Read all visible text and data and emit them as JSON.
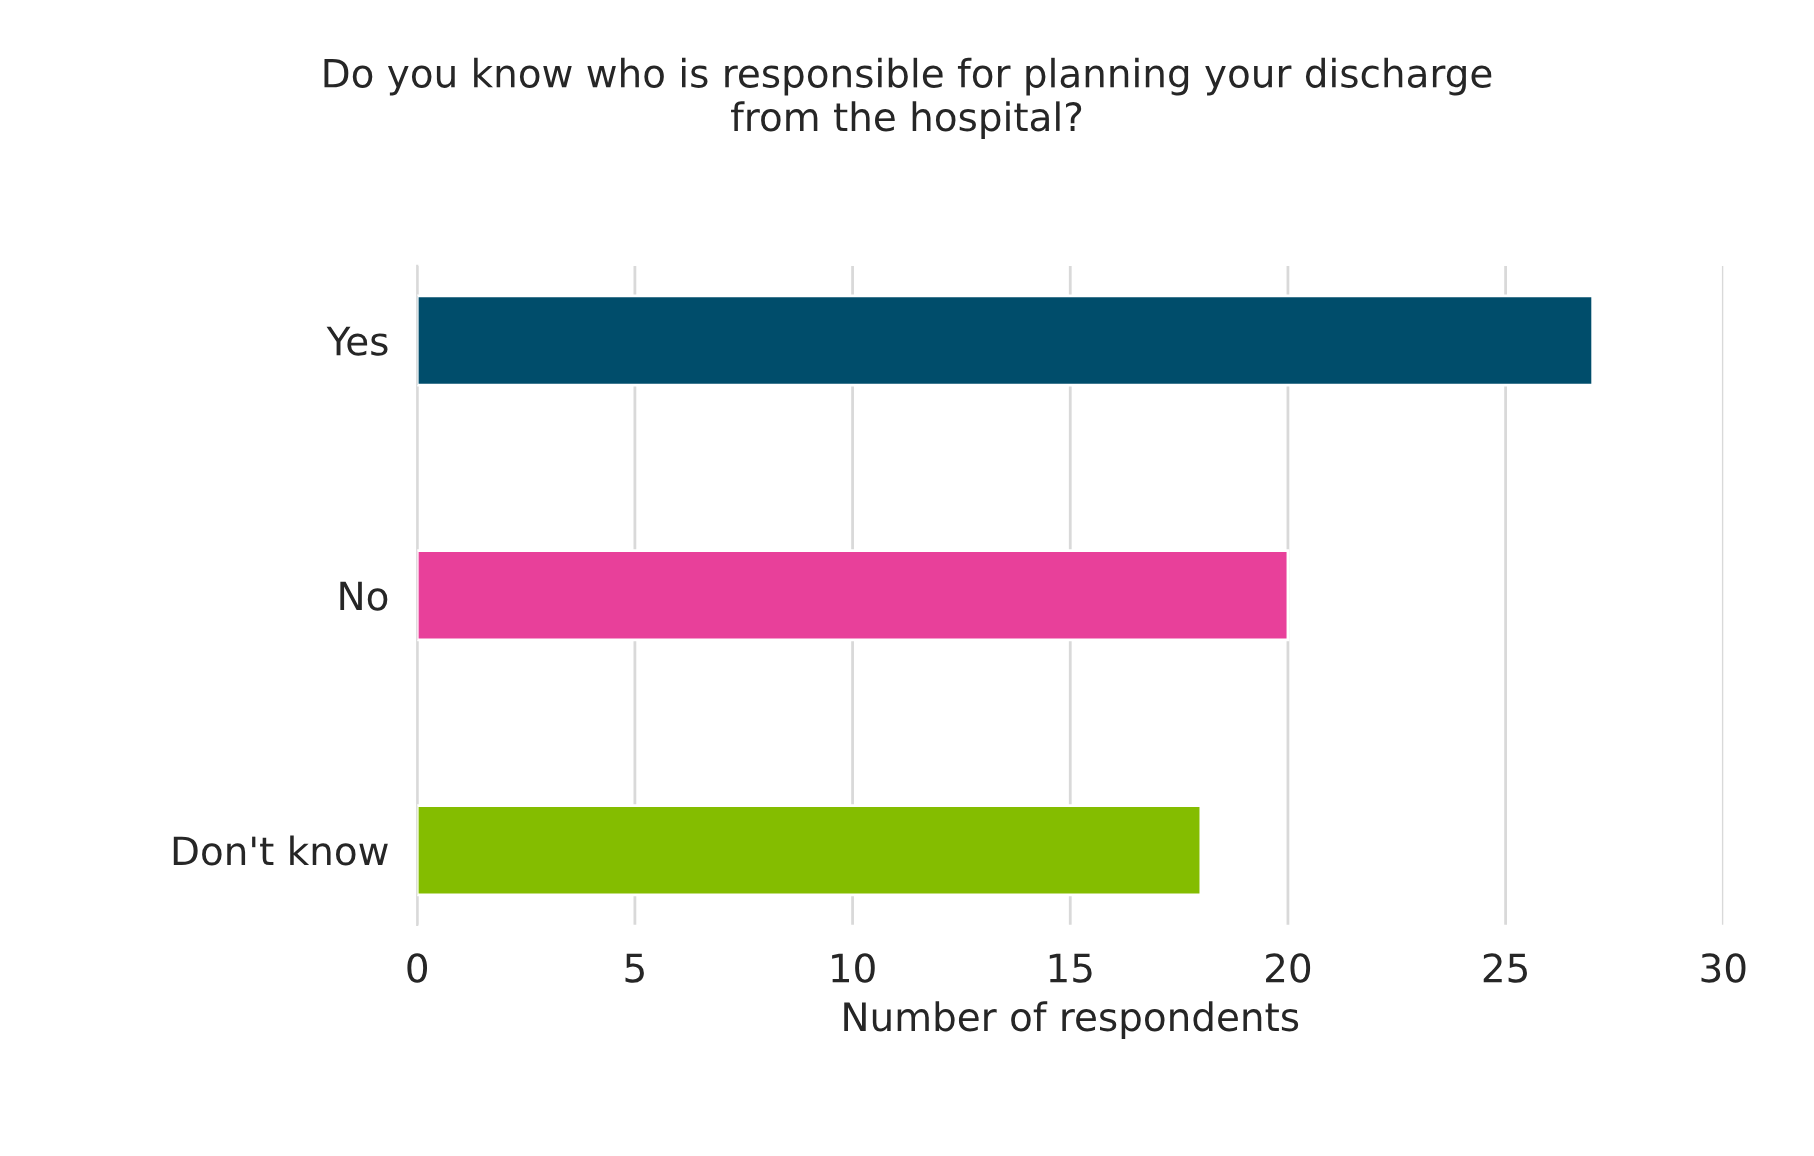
{
  "chart_data": {
    "type": "bar",
    "orientation": "horizontal",
    "title": "Do you know who is responsible for planning your discharge\nfrom the hospital?",
    "categories": [
      "Yes",
      "No",
      "Don't know"
    ],
    "values": [
      27,
      20,
      18
    ],
    "colors": [
      "#004d6b",
      "#e8409a",
      "#84bd00"
    ],
    "xlabel": "Number of respondents",
    "xlim": [
      0,
      30
    ],
    "xticks": [
      0,
      5,
      10,
      15,
      20,
      25,
      30
    ],
    "grid": "x",
    "legend": false
  }
}
